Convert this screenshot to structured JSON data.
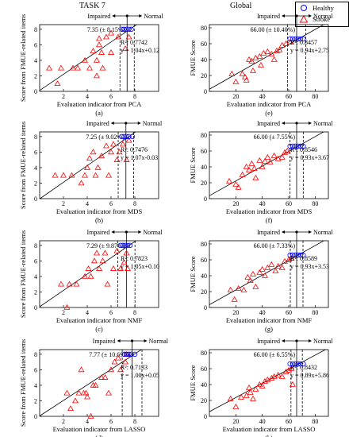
{
  "header": {
    "left_title": "TASK 7",
    "right_title": "Global"
  },
  "legend": [
    {
      "label": "Healthy",
      "marker": "circle",
      "color": "#0000ff"
    },
    {
      "label": "Stroke",
      "marker": "triangle",
      "color": "#ff0000"
    }
  ],
  "labels": {
    "impaired": "Impaired",
    "normal": "Normal"
  },
  "colors": {
    "healthy": "#0000ff",
    "stroke": "#ff0000",
    "line": "#000000"
  },
  "chart_data": [
    {
      "panel": "(a)",
      "type": "scatter",
      "xlabel": "Evaluation indicator from PCA",
      "ylabel": "Score from FMUE-related items",
      "xlim": [
        0,
        10
      ],
      "ylim": [
        0,
        8.6
      ],
      "xticks": [
        2,
        4,
        6,
        8
      ],
      "yticks": [
        0,
        2,
        4,
        6,
        8
      ],
      "threshold_text": "7.35 (± 8.15%)",
      "threshold": 7.35,
      "band": [
        6.75,
        7.95
      ],
      "r2_label": "R²: 0.7742",
      "fit_label": "y = 1.04x+0.12",
      "fit": [
        1.04,
        0.12
      ],
      "stroke_points": [
        [
          0.8,
          3
        ],
        [
          1.5,
          1
        ],
        [
          1.8,
          3
        ],
        [
          2.8,
          3
        ],
        [
          3.2,
          3
        ],
        [
          3.8,
          4
        ],
        [
          4.2,
          3
        ],
        [
          4.5,
          5.2
        ],
        [
          4.8,
          4
        ],
        [
          4.8,
          2
        ],
        [
          5,
          6
        ],
        [
          5,
          6.8
        ],
        [
          5.2,
          5
        ],
        [
          5.3,
          3
        ],
        [
          5.6,
          7
        ],
        [
          6,
          5
        ],
        [
          6,
          7.5
        ],
        [
          6.6,
          7
        ],
        [
          7.2,
          5.5
        ],
        [
          7.5,
          7
        ]
      ],
      "healthy_points": [
        [
          6.9,
          8
        ],
        [
          7.1,
          8
        ],
        [
          7.3,
          8
        ],
        [
          7.5,
          8
        ],
        [
          7.7,
          8
        ]
      ]
    },
    {
      "panel": "(b)",
      "type": "scatter",
      "xlabel": "Evaluation indicator from MDS",
      "ylabel": "Score from FMUE-related items",
      "xlim": [
        0,
        10
      ],
      "ylim": [
        0,
        8.6
      ],
      "xticks": [
        2,
        4,
        6,
        8
      ],
      "yticks": [
        0,
        2,
        4,
        6,
        8
      ],
      "threshold_text": "7.25 (± 9.02%)",
      "threshold": 7.25,
      "band": [
        6.6,
        7.9
      ],
      "r2_label": "R²: 0.7476",
      "fit_label": "y = 1.07x-0.03",
      "fit": [
        1.07,
        -0.03
      ],
      "stroke_points": [
        [
          1.3,
          3
        ],
        [
          2,
          3
        ],
        [
          2.7,
          3
        ],
        [
          3.5,
          2
        ],
        [
          3.8,
          3
        ],
        [
          4,
          4
        ],
        [
          4.2,
          5.2
        ],
        [
          4.5,
          6
        ],
        [
          4.7,
          3
        ],
        [
          4.9,
          4
        ],
        [
          5.2,
          5.5
        ],
        [
          5.6,
          6.8
        ],
        [
          5.8,
          3
        ],
        [
          6,
          6
        ],
        [
          6.2,
          7
        ],
        [
          6.5,
          5
        ],
        [
          6.7,
          6
        ],
        [
          7,
          7
        ],
        [
          7.3,
          5
        ],
        [
          7.5,
          7.5
        ]
      ],
      "healthy_points": [
        [
          6.9,
          8
        ],
        [
          7.1,
          8
        ],
        [
          7.3,
          8
        ],
        [
          7.5,
          8
        ],
        [
          7.8,
          8
        ]
      ]
    },
    {
      "panel": "(c)",
      "type": "scatter",
      "xlabel": "Evaluation indicator from NMF",
      "ylabel": "Score from FMUE-related items",
      "xlim": [
        0,
        10
      ],
      "ylim": [
        0,
        8.6
      ],
      "xticks": [
        2,
        4,
        6,
        8
      ],
      "yticks": [
        0,
        2,
        4,
        6,
        8
      ],
      "threshold_text": "7.29 (± 9.87%)",
      "threshold": 7.29,
      "band": [
        6.57,
        8.01
      ],
      "r2_label": "R²: 0.7823",
      "fit_label": "y = 1.05x+0.10",
      "fit": [
        1.05,
        0.1
      ],
      "stroke_points": [
        [
          1.8,
          3
        ],
        [
          2.3,
          0
        ],
        [
          2.5,
          3
        ],
        [
          3.1,
          3
        ],
        [
          3.8,
          4
        ],
        [
          4.1,
          5
        ],
        [
          4.3,
          4
        ],
        [
          4.6,
          6
        ],
        [
          4.8,
          7
        ],
        [
          5,
          5
        ],
        [
          5.3,
          6
        ],
        [
          5.5,
          7
        ],
        [
          5.7,
          3
        ],
        [
          6.2,
          5
        ],
        [
          6.5,
          7.3
        ],
        [
          6.8,
          5
        ],
        [
          7.1,
          5.8
        ],
        [
          7.3,
          7
        ],
        [
          7.4,
          5
        ]
      ],
      "healthy_points": [
        [
          6.8,
          8
        ],
        [
          7,
          8
        ],
        [
          7.2,
          8
        ],
        [
          7.4,
          8
        ],
        [
          7.6,
          8
        ]
      ]
    },
    {
      "panel": "(d)",
      "type": "scatter",
      "xlabel": "Evaluation indicator from LASSO",
      "ylabel": "Score from FMUE-related items",
      "xlim": [
        0,
        10
      ],
      "ylim": [
        0,
        8.6
      ],
      "xticks": [
        2,
        4,
        6,
        8
      ],
      "yticks": [
        0,
        2,
        4,
        6,
        8
      ],
      "threshold_text": "7.77 (± 10.69%)",
      "threshold": 7.77,
      "band": [
        6.94,
        8.6
      ],
      "r2_label": "R²: 0.7133",
      "fit_label": "y = 1.00x+0.05",
      "fit": [
        1.0,
        0.05
      ],
      "stroke_points": [
        [
          2.3,
          3
        ],
        [
          2.6,
          1
        ],
        [
          3,
          2
        ],
        [
          3.3,
          3
        ],
        [
          3.5,
          6
        ],
        [
          3.7,
          3
        ],
        [
          3.9,
          3
        ],
        [
          4,
          2.5
        ],
        [
          4.3,
          0
        ],
        [
          4.5,
          4
        ],
        [
          4.7,
          4
        ],
        [
          5.2,
          5
        ],
        [
          5.5,
          5
        ],
        [
          5.8,
          3
        ],
        [
          6,
          6
        ],
        [
          6.3,
          7
        ],
        [
          6.6,
          7.5
        ],
        [
          6.8,
          6
        ],
        [
          7.3,
          8
        ],
        [
          7.2,
          7
        ]
      ],
      "healthy_points": [
        [
          7.1,
          8
        ],
        [
          7.3,
          8
        ],
        [
          7.5,
          8
        ],
        [
          7.7,
          8
        ],
        [
          8,
          8
        ]
      ]
    },
    {
      "panel": "(e)",
      "type": "scatter",
      "xlabel": "Evaluation indicator from PCA",
      "ylabel": "FMUE Score",
      "xlim": [
        0,
        90
      ],
      "ylim": [
        0,
        84
      ],
      "xticks": [
        20,
        40,
        60,
        80
      ],
      "yticks": [
        0,
        20,
        40,
        60,
        80
      ],
      "threshold_text": "66.00 (± 10.40%)",
      "threshold": 66.0,
      "band": [
        59.1,
        72.9
      ],
      "r2_label": "R²: 0.8457",
      "fit_label": "y = 0.94x+2.75",
      "fit": [
        0.94,
        2.75
      ],
      "stroke_points": [
        [
          17,
          22
        ],
        [
          20,
          12
        ],
        [
          25,
          22
        ],
        [
          27,
          18
        ],
        [
          28,
          14
        ],
        [
          30,
          40
        ],
        [
          32,
          38
        ],
        [
          33,
          26
        ],
        [
          35,
          42
        ],
        [
          38,
          44
        ],
        [
          39,
          33
        ],
        [
          41,
          48
        ],
        [
          44,
          50
        ],
        [
          47,
          47
        ],
        [
          49,
          40
        ],
        [
          51,
          51
        ],
        [
          53,
          52
        ],
        [
          55,
          58
        ],
        [
          58,
          60
        ],
        [
          61,
          62
        ]
      ],
      "healthy_points": [
        [
          61,
          66
        ],
        [
          63,
          66
        ],
        [
          65,
          66
        ],
        [
          67,
          66
        ],
        [
          69,
          66
        ],
        [
          71,
          66
        ]
      ]
    },
    {
      "panel": "(f)",
      "type": "scatter",
      "xlabel": "Evaluation indicator from MDS",
      "ylabel": "FMUE Score",
      "xlim": [
        0,
        90
      ],
      "ylim": [
        0,
        84
      ],
      "xticks": [
        20,
        40,
        60,
        80
      ],
      "yticks": [
        0,
        20,
        40,
        60,
        80
      ],
      "threshold_text": "66.00 (± 7.55%)",
      "threshold": 66.0,
      "band": [
        61.0,
        71.0
      ],
      "r2_label": "R²: 0.8546",
      "fit_label": "y = 0.93x+3.67",
      "fit": [
        0.93,
        3.67
      ],
      "stroke_points": [
        [
          15,
          22
        ],
        [
          20,
          18
        ],
        [
          22,
          14
        ],
        [
          25,
          30
        ],
        [
          28,
          40
        ],
        [
          30,
          36
        ],
        [
          32,
          44
        ],
        [
          34,
          38
        ],
        [
          35,
          26
        ],
        [
          38,
          48
        ],
        [
          40,
          40
        ],
        [
          42,
          47
        ],
        [
          44,
          52
        ],
        [
          46,
          46
        ],
        [
          49,
          54
        ],
        [
          52,
          50
        ],
        [
          55,
          52
        ],
        [
          57,
          58
        ],
        [
          59,
          60
        ]
      ],
      "healthy_points": [
        [
          61,
          66
        ],
        [
          63,
          66
        ],
        [
          65,
          66
        ],
        [
          67,
          66
        ],
        [
          69,
          66
        ],
        [
          71,
          66
        ]
      ]
    },
    {
      "panel": "(g)",
      "type": "scatter",
      "xlabel": "Evaluation indicator from NMF",
      "ylabel": "FMUE Score",
      "xlim": [
        0,
        90
      ],
      "ylim": [
        0,
        84
      ],
      "xticks": [
        20,
        40,
        60,
        80
      ],
      "yticks": [
        0,
        20,
        40,
        60,
        80
      ],
      "threshold_text": "66.00 (± 7.33%)",
      "threshold": 66.0,
      "band": [
        61.2,
        70.8
      ],
      "r2_label": "R²: 0.8589",
      "fit_label": "y = 0.93x+3.53",
      "fit": [
        0.93,
        3.53
      ],
      "stroke_points": [
        [
          16,
          22
        ],
        [
          19,
          10
        ],
        [
          22,
          24
        ],
        [
          26,
          22
        ],
        [
          29,
          38
        ],
        [
          31,
          34
        ],
        [
          33,
          42
        ],
        [
          35,
          26
        ],
        [
          38,
          44
        ],
        [
          40,
          48
        ],
        [
          42,
          40
        ],
        [
          44,
          50
        ],
        [
          47,
          54
        ],
        [
          50,
          46
        ],
        [
          52,
          52
        ],
        [
          55,
          50
        ],
        [
          57,
          58
        ],
        [
          60,
          60
        ],
        [
          62,
          62
        ]
      ],
      "healthy_points": [
        [
          61,
          66
        ],
        [
          63,
          66
        ],
        [
          65,
          66
        ],
        [
          67,
          66
        ],
        [
          69,
          66
        ],
        [
          71,
          66
        ]
      ]
    },
    {
      "panel": "(h)",
      "type": "scatter",
      "xlabel": "Evaluation indicator from LASSO",
      "ylabel": "FMUE Score",
      "xlim": [
        0,
        90
      ],
      "ylim": [
        0,
        84
      ],
      "xticks": [
        20,
        40,
        60,
        80
      ],
      "yticks": [
        0,
        20,
        40,
        60,
        80
      ],
      "threshold_text": "66.00 (± 6.55%)",
      "threshold": 66.0,
      "band": [
        61.7,
        70.3
      ],
      "r2_label": "R²: 0.8432",
      "fit_label": "y = 0.89x+5.86",
      "fit": [
        0.89,
        5.86
      ],
      "stroke_points": [
        [
          16,
          22
        ],
        [
          20,
          12
        ],
        [
          24,
          24
        ],
        [
          28,
          26
        ],
        [
          30,
          36
        ],
        [
          31,
          30
        ],
        [
          33,
          22
        ],
        [
          35,
          34
        ],
        [
          38,
          40
        ],
        [
          40,
          38
        ],
        [
          42,
          44
        ],
        [
          44,
          46
        ],
        [
          47,
          48
        ],
        [
          49,
          50
        ],
        [
          52,
          52
        ],
        [
          55,
          50
        ],
        [
          58,
          56
        ],
        [
          60,
          58
        ],
        [
          62,
          60
        ],
        [
          63,
          40
        ]
      ],
      "healthy_points": [
        [
          61,
          66
        ],
        [
          63,
          66
        ],
        [
          65,
          66
        ],
        [
          67,
          66
        ],
        [
          69,
          66
        ],
        [
          71,
          66
        ]
      ]
    }
  ]
}
